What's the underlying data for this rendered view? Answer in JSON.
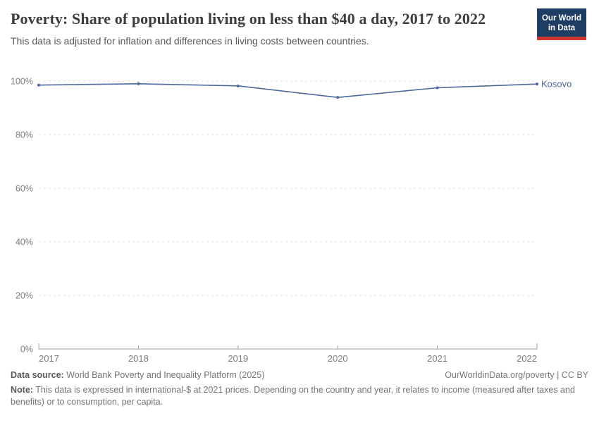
{
  "header": {
    "title": "Poverty: Share of population living on less than $40 a day, 2017 to 2022",
    "subtitle": "This data is adjusted for inflation and differences in living costs between countries.",
    "logo": {
      "line1": "Our World",
      "line2": "in Data",
      "bg_color": "#1d3d63",
      "accent_color": "#cf372e"
    }
  },
  "chart_data": {
    "type": "line",
    "title": "Poverty: Share of population living on less than $40 a day",
    "xlabel": "",
    "ylabel": "",
    "xlim": [
      2017,
      2022
    ],
    "ylim": [
      0,
      100
    ],
    "grid": "horizontal-dashed",
    "legend": "end-of-line-label",
    "x": [
      2017,
      2018,
      2019,
      2020,
      2021,
      2022
    ],
    "series": [
      {
        "name": "Kosovo",
        "color": "#4C6A9C",
        "values": [
          98.5,
          99.0,
          98.2,
          93.9,
          97.5,
          98.9
        ]
      }
    ],
    "x_ticks": [
      {
        "value": 2017,
        "label": "2017"
      },
      {
        "value": 2018,
        "label": "2018"
      },
      {
        "value": 2019,
        "label": "2019"
      },
      {
        "value": 2020,
        "label": "2020"
      },
      {
        "value": 2021,
        "label": "2021"
      },
      {
        "value": 2022,
        "label": "2022"
      }
    ],
    "y_ticks": [
      {
        "value": 0,
        "label": "0%"
      },
      {
        "value": 20,
        "label": "20%"
      },
      {
        "value": 40,
        "label": "40%"
      },
      {
        "value": 60,
        "label": "60%"
      },
      {
        "value": 80,
        "label": "80%"
      },
      {
        "value": 100,
        "label": "100%"
      }
    ],
    "colors": {
      "gridline": "#dedede",
      "axis": "#9e9e9e",
      "tick_text": "#7d7d7d"
    }
  },
  "footer": {
    "datasource_label": "Data source:",
    "datasource_value": " World Bank Poverty and Inequality Platform (2025)",
    "credit": "OurWorldinData.org/poverty | CC BY",
    "note_label": "Note:",
    "note_value": " This data is expressed in international-$ at 2021 prices. Depending on the country and year, it relates to income (measured after taxes and benefits) or to consumption, per capita."
  }
}
